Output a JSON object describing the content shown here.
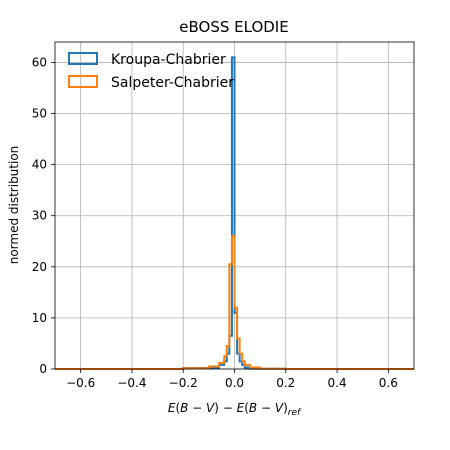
{
  "chart_data": {
    "type": "histogram",
    "title": "eBOSS ELODIE",
    "xlabel": "E(B - V) - E(B - V)_ref",
    "ylabel": "normed distribution",
    "xlim": [
      -0.7,
      0.7
    ],
    "ylim": [
      0,
      64
    ],
    "xticks": [
      -0.6,
      -0.4,
      -0.2,
      0.0,
      0.2,
      0.4,
      0.6
    ],
    "xtick_labels": [
      "−0.6",
      "−0.4",
      "−0.2",
      "0.0",
      "0.2",
      "0.4",
      "0.6"
    ],
    "yticks": [
      0,
      10,
      20,
      30,
      40,
      50,
      60
    ],
    "ytick_labels": [
      "0",
      "10",
      "20",
      "30",
      "40",
      "50",
      "60"
    ],
    "grid": true,
    "legend_position": "top-left",
    "series": [
      {
        "name": "Kroupa-Chabrier",
        "color": "#1f77b4",
        "bin_edges": [
          -0.7,
          -0.2,
          -0.06,
          -0.04,
          -0.03,
          -0.02,
          -0.01,
          0.0,
          0.01,
          0.02,
          0.03,
          0.04,
          0.06,
          0.2,
          0.7
        ],
        "values": [
          0.0,
          0.2,
          0.8,
          1.5,
          3.0,
          6.5,
          61.0,
          11.0,
          3.0,
          1.5,
          0.8,
          0.3,
          0.05,
          0.0
        ]
      },
      {
        "name": "Salpeter-Chabrier",
        "color": "#ff7f0e",
        "bin_edges": [
          -0.7,
          -0.2,
          -0.1,
          -0.06,
          -0.04,
          -0.03,
          -0.02,
          -0.01,
          0.0,
          0.01,
          0.02,
          0.03,
          0.04,
          0.06,
          0.1,
          0.2,
          0.7
        ],
        "values": [
          0.0,
          0.15,
          0.5,
          1.2,
          2.5,
          4.5,
          20.5,
          26.0,
          12.0,
          6.0,
          3.0,
          1.5,
          0.8,
          0.3,
          0.05,
          0.0
        ]
      }
    ]
  }
}
